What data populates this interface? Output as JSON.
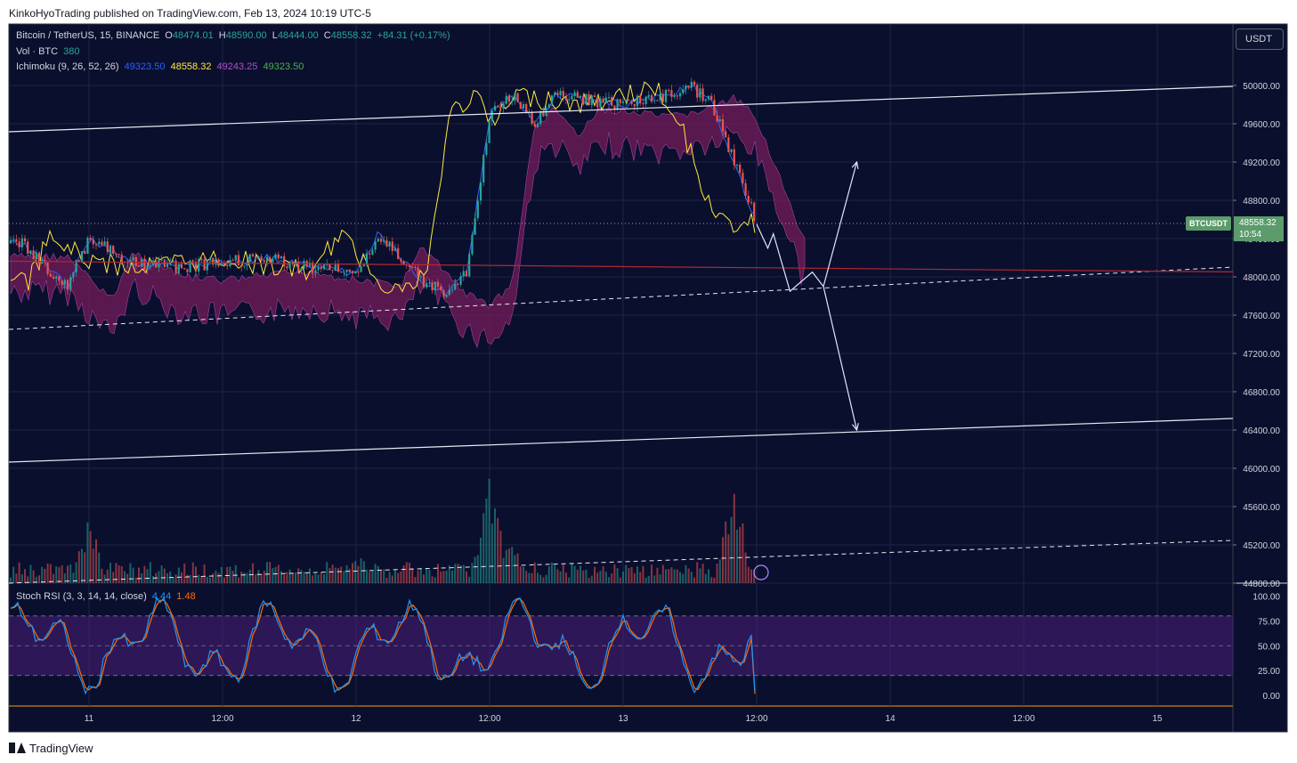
{
  "attribution": "KinkoHyoTrading published on TradingView.com, Feb 13, 2024 10:19 UTC-5",
  "footer_brand": "TradingView",
  "currency_button": "USDT",
  "legend": {
    "symbol": "Bitcoin / TetherUS, 15, BINANCE",
    "ohlc": [
      {
        "key": "O",
        "value": "48474.01"
      },
      {
        "key": "H",
        "value": "48590.00"
      },
      {
        "key": "L",
        "value": "48444.00"
      },
      {
        "key": "C",
        "value": "48558.32"
      }
    ],
    "change": "+84.31 (+0.17%)",
    "vol_label": "Vol · BTC",
    "vol_value": "380",
    "ichimoku_label": "Ichimoku (9, 26, 52, 26)",
    "ichimoku_values": [
      "49323.50",
      "48558.32",
      "49243.25",
      "49323.50"
    ],
    "stoch_label": "Stoch RSI (3, 3, 14, 14, close)",
    "stoch_k": "4.44",
    "stoch_d": "1.48"
  },
  "price_label": {
    "symbol": "BTCUSDT",
    "price": "48558.32",
    "countdown": "10:54"
  },
  "colors": {
    "background": "#0b0f2e",
    "up": "#26a69a",
    "down": "#ef5350",
    "conversion": "#2962ff",
    "lagging": "#ffeb3b",
    "cloud_bear": "#7b1d5c",
    "cloud_bull": "#3d6b52",
    "stoch_k": "#2196f3",
    "stoch_d": "#ff6d00",
    "stoch_band": "#4a1f7a",
    "hline": "#b22833"
  },
  "chart_data": [
    {
      "type": "candlestick",
      "title": "Bitcoin / TetherUS, 15, BINANCE",
      "y_axis_ticks": [
        "50000.00",
        "49600.00",
        "49200.00",
        "48800.00",
        "48400.00",
        "48000.00",
        "47600.00",
        "47200.00",
        "46800.00",
        "46400.00",
        "46000.00",
        "45600.00",
        "45200.00",
        "44800.00"
      ],
      "x_axis_ticks": [
        "11",
        "12:00",
        "12",
        "12:00",
        "13",
        "12:00",
        "14",
        "12:00",
        "15"
      ],
      "ylim": [
        44800,
        50400
      ],
      "last_price": 48558.32,
      "close_path": [
        {
          "t": "Feb 10 18:00",
          "close": 48350
        },
        {
          "t": "Feb 10 22:00",
          "close": 47900
        },
        {
          "t": "Feb 11 00:00",
          "close": 48400
        },
        {
          "t": "Feb 11 04:00",
          "close": 48150
        },
        {
          "t": "Feb 11 08:00",
          "close": 48100
        },
        {
          "t": "Feb 11 12:00",
          "close": 48150
        },
        {
          "t": "Feb 11 16:00",
          "close": 48200
        },
        {
          "t": "Feb 11 20:00",
          "close": 48100
        },
        {
          "t": "Feb 12 00:00",
          "close": 48050
        },
        {
          "t": "Feb 12 02:00",
          "close": 48450
        },
        {
          "t": "Feb 12 06:00",
          "close": 47950
        },
        {
          "t": "Feb 12 08:00",
          "close": 47850
        },
        {
          "t": "Feb 12 10:00",
          "close": 48050
        },
        {
          "t": "Feb 12 12:00",
          "close": 49700
        },
        {
          "t": "Feb 12 14:00",
          "close": 49900
        },
        {
          "t": "Feb 12 16:00",
          "close": 49600
        },
        {
          "t": "Feb 12 18:00",
          "close": 49900
        },
        {
          "t": "Feb 13 00:00",
          "close": 49800
        },
        {
          "t": "Feb 13 04:00",
          "close": 49900
        },
        {
          "t": "Feb 13 06:00",
          "close": 50000
        },
        {
          "t": "Feb 13 08:00",
          "close": 49800
        },
        {
          "t": "Feb 13 10:00",
          "close": 49200
        },
        {
          "t": "Feb 13 12:00",
          "close": 48558
        }
      ],
      "forecast_path": [
        {
          "t": "Feb 13 12:00",
          "price": 48550
        },
        {
          "t": "Feb 13 13:00",
          "price": 48300
        },
        {
          "t": "Feb 13 13:30",
          "price": 48450
        },
        {
          "t": "Feb 13 15:00",
          "price": 47850
        },
        {
          "t": "Feb 13 17:00",
          "price": 48050
        },
        {
          "t": "Feb 13 18:00",
          "price": 47900
        },
        {
          "t": "Feb 13 21:00",
          "price": 46400
        }
      ],
      "alt_path": [
        {
          "t": "Feb 13 18:00",
          "price": 47900
        },
        {
          "t": "Feb 13 21:00",
          "price": 49200
        }
      ],
      "horizontal_line": 48080
    },
    {
      "type": "bar",
      "title": "Vol · BTC",
      "last_value": 380,
      "values": [
        {
          "t": "Feb 11 00:00",
          "value": 1700
        },
        {
          "t": "Feb 12 00:00",
          "value": 900
        },
        {
          "t": "Feb 12 12:00",
          "value": 3000
        },
        {
          "t": "Feb 12 14:00",
          "value": 1200
        },
        {
          "t": "Feb 13 10:00",
          "value": 2800
        }
      ]
    },
    {
      "type": "line",
      "title": "Stoch RSI (3, 3, 14, 14, close)",
      "y_axis_ticks": [
        "100.00",
        "75.00",
        "50.00",
        "25.00",
        "0.00"
      ],
      "ylim": [
        0,
        100
      ],
      "bands": [
        80,
        50,
        20
      ],
      "series": [
        {
          "name": "K",
          "last": 4.44
        },
        {
          "name": "D",
          "last": 1.48
        }
      ]
    }
  ]
}
